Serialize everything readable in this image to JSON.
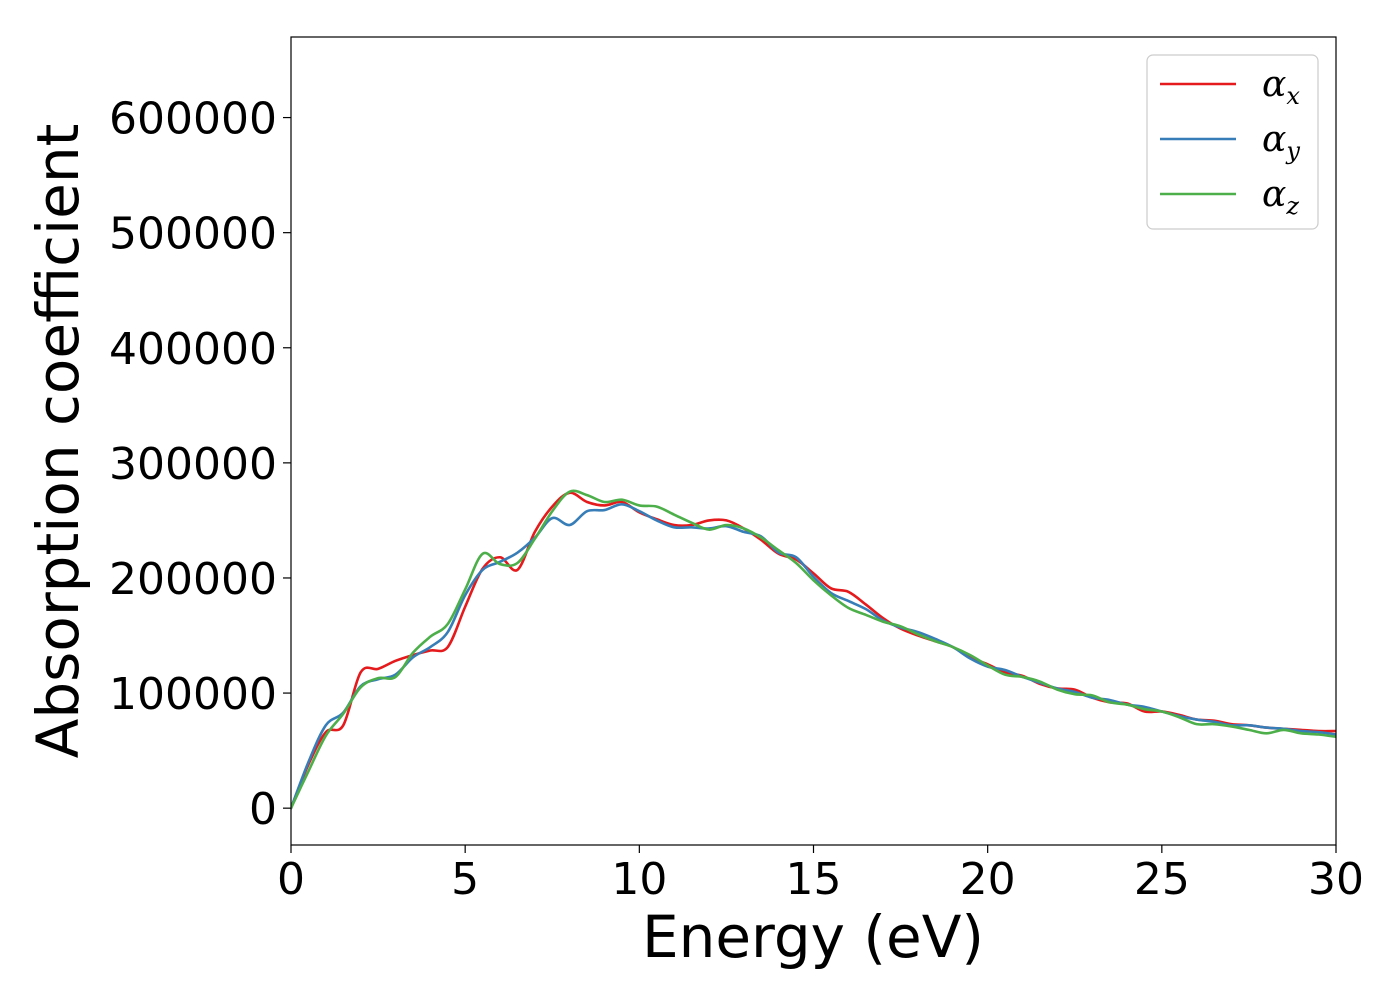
{
  "chart_data": {
    "type": "line",
    "title": "",
    "xlabel": "Energy (eV)",
    "ylabel": "Absorption coefficient",
    "xlim": [
      0,
      30
    ],
    "ylim": [
      -32000,
      670000
    ],
    "xticks": [
      "0",
      "5",
      "10",
      "15",
      "20",
      "25",
      "30"
    ],
    "yticks": [
      "0",
      "100000",
      "200000",
      "300000",
      "400000",
      "500000",
      "600000"
    ],
    "grid": false,
    "legend_position": "top-right",
    "x": [
      0,
      0.5,
      1,
      1.5,
      2,
      2.5,
      3,
      3.5,
      4,
      4.5,
      5,
      5.5,
      6,
      6.5,
      7,
      7.5,
      8,
      8.5,
      9,
      9.5,
      10,
      10.5,
      11,
      11.5,
      12,
      12.5,
      13,
      13.5,
      14,
      14.5,
      15,
      15.5,
      16,
      16.5,
      17,
      17.5,
      18,
      18.5,
      19,
      19.5,
      20,
      20.5,
      21,
      21.5,
      22,
      22.5,
      23,
      23.5,
      24,
      24.5,
      25,
      25.5,
      26,
      26.5,
      27,
      27.5,
      28,
      28.5,
      29,
      29.5,
      30
    ],
    "series": [
      {
        "name": "x",
        "color": "#e41a1c",
        "values": [
          0,
          38000,
          66000,
          72000,
          118000,
          121000,
          128000,
          133000,
          137000,
          140000,
          175000,
          208000,
          218000,
          207000,
          240000,
          262000,
          274000,
          266000,
          263000,
          266000,
          257000,
          251000,
          246000,
          246000,
          250000,
          250000,
          243000,
          233000,
          221000,
          216000,
          204000,
          191000,
          188000,
          177000,
          165000,
          156000,
          150000,
          145000,
          140000,
          131000,
          125000,
          118000,
          115000,
          108000,
          104000,
          103000,
          96000,
          92000,
          91000,
          84000,
          84000,
          81000,
          77000,
          76000,
          73000,
          72000,
          70000,
          69000,
          68000,
          67000,
          67000
        ]
      },
      {
        "name": "y",
        "color": "#377eb8",
        "values": [
          0,
          40000,
          72000,
          83000,
          106000,
          112000,
          116000,
          131000,
          140000,
          153000,
          185000,
          207000,
          214000,
          222000,
          235000,
          252000,
          246000,
          258000,
          259000,
          264000,
          258000,
          250000,
          244000,
          244000,
          243000,
          245000,
          240000,
          236000,
          222000,
          218000,
          201000,
          187000,
          180000,
          173000,
          163000,
          157000,
          153000,
          147000,
          140000,
          130000,
          123000,
          120000,
          114000,
          109000,
          104000,
          101000,
          96000,
          94000,
          90000,
          88000,
          84000,
          80000,
          77000,
          75000,
          72000,
          72000,
          70000,
          69000,
          67000,
          66000,
          64000
        ]
      },
      {
        "name": "z",
        "color": "#4daf4a",
        "values": [
          0,
          32000,
          63000,
          82000,
          105000,
          113000,
          114000,
          135000,
          149000,
          160000,
          190000,
          221000,
          212000,
          213000,
          234000,
          258000,
          275000,
          272000,
          266000,
          268000,
          263000,
          262000,
          255000,
          248000,
          242000,
          246000,
          243000,
          235000,
          224000,
          213000,
          198000,
          185000,
          174000,
          168000,
          162000,
          158000,
          151000,
          145000,
          140000,
          133000,
          124000,
          116000,
          114000,
          110000,
          103000,
          99000,
          98000,
          92000,
          90000,
          86000,
          84000,
          79000,
          73000,
          73000,
          71000,
          68000,
          65000,
          68000,
          65000,
          64000,
          62000
        ]
      }
    ]
  },
  "legend": {
    "symbol": "α"
  }
}
